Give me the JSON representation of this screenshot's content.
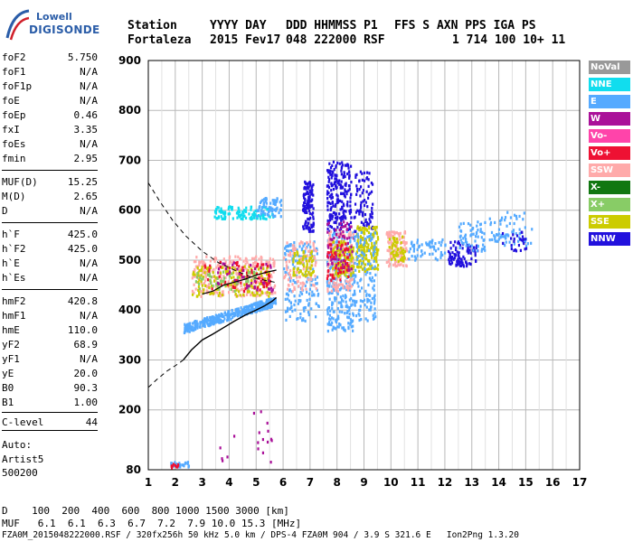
{
  "header": {
    "row1": [
      "Station",
      "YYYY DAY",
      "DDD HHMMSS P1",
      "FFS S AXN PPS IGA PS"
    ],
    "row2": [
      "Fortaleza",
      "2015 Fev17",
      "048 222000 RSF",
      "1 714 100 10+ 11"
    ]
  },
  "logo": {
    "line1": "Lowell",
    "line2": "DIGISONDE"
  },
  "params": [
    {
      "name": "foF2",
      "value": "5.750"
    },
    {
      "name": "foF1",
      "value": "N/A"
    },
    {
      "name": "foF1p",
      "value": "N/A"
    },
    {
      "name": "foE",
      "value": "N/A"
    },
    {
      "name": "foEp",
      "value": "0.46"
    },
    {
      "name": "fxI",
      "value": "3.35"
    },
    {
      "name": "foEs",
      "value": "N/A"
    },
    {
      "name": "fmin",
      "value": "2.95"
    },
    {
      "name": "MUF(D)",
      "value": "15.25"
    },
    {
      "name": "M(D)",
      "value": "2.65"
    },
    {
      "name": "D",
      "value": "N/A"
    },
    {
      "name": "h`F",
      "value": "425.0"
    },
    {
      "name": "h`F2",
      "value": "425.0"
    },
    {
      "name": "h`E",
      "value": "N/A"
    },
    {
      "name": "h`Es",
      "value": "N/A"
    },
    {
      "name": "hmF2",
      "value": "420.8"
    },
    {
      "name": "hmF1",
      "value": "N/A"
    },
    {
      "name": "hmE",
      "value": "110.0"
    },
    {
      "name": "yF2",
      "value": "68.9"
    },
    {
      "name": "yF1",
      "value": "N/A"
    },
    {
      "name": "yE",
      "value": "20.0"
    },
    {
      "name": "B0",
      "value": "90.3"
    },
    {
      "name": "B1",
      "value": "1.00"
    },
    {
      "name": "C-level",
      "value": "44"
    }
  ],
  "auto": {
    "line1": "Auto:",
    "line2": "Artist5",
    "line3": "500200"
  },
  "legend": [
    {
      "label": "NoVal",
      "color": "#999999",
      "text_color": "#ffffff"
    },
    {
      "label": "NNE",
      "color": "#11ddee",
      "text_color": "#ffffff"
    },
    {
      "label": "E",
      "color": "#55aaff",
      "text_color": "#ffffff"
    },
    {
      "label": "W",
      "color": "#aa1199",
      "text_color": "#ffffff"
    },
    {
      "label": "Vo-",
      "color": "#ff44aa",
      "text_color": "#ffffff"
    },
    {
      "label": "Vo+",
      "color": "#ee1133",
      "text_color": "#ffffff"
    },
    {
      "label": "SSW",
      "color": "#ffaaaa",
      "text_color": "#ffffff"
    },
    {
      "label": "X-",
      "color": "#117711",
      "text_color": "#ffffff"
    },
    {
      "label": "X+",
      "color": "#88cc66",
      "text_color": "#ffffff"
    },
    {
      "label": "SSE",
      "color": "#cccc00",
      "text_color": "#ffffff"
    },
    {
      "label": "NNW",
      "color": "#2211dd",
      "text_color": "#ffffff"
    }
  ],
  "footer": {
    "line1": "D    100  200  400  600  800 1000 1500 3000 [km]",
    "line2": "MUF   6.1  6.1  6.3  6.7  7.2  7.9 10.0 15.3 [MHz]",
    "line3": "FZA0M_2015048222000.RSF / 320fx256h 50 kHz 5.0 km / DPS-4 FZA0M 904 / 3.9 S 321.6 E   Ion2Png 1.3.20"
  },
  "chart_data": {
    "type": "scatter",
    "x_ticks": [
      1,
      2,
      3,
      4,
      5,
      6,
      7,
      8,
      9,
      10,
      11,
      12,
      13,
      14,
      15,
      16,
      17
    ],
    "y_ticks": [
      80,
      200,
      300,
      400,
      500,
      600,
      700,
      800,
      900
    ],
    "xlim": [
      1,
      17
    ],
    "ylim": [
      80,
      900
    ],
    "grid": true,
    "legend_position": "right",
    "profile_curve": {
      "x": [
        2.3,
        2.6,
        3.0,
        3.4,
        3.8,
        4.2,
        4.6,
        5.0,
        5.3,
        5.6,
        5.75
      ],
      "y": [
        300,
        320,
        340,
        352,
        365,
        378,
        390,
        400,
        408,
        418,
        425
      ]
    },
    "profile_dashed_upper": {
      "x": [
        1.0,
        1.4,
        1.9,
        2.4,
        3.0,
        3.6,
        4.2,
        4.8,
        5.3,
        5.75
      ],
      "y": [
        655,
        620,
        580,
        548,
        518,
        495,
        480,
        466,
        460,
        455
      ]
    },
    "profile_dashed_lower": {
      "x": [
        1.0,
        1.3,
        1.7,
        2.1,
        2.3
      ],
      "y": [
        245,
        260,
        278,
        292,
        300
      ]
    },
    "trace_curve": {
      "x": [
        3.0,
        3.4,
        3.8,
        4.2,
        4.6,
        5.0,
        5.4,
        5.75
      ],
      "y": [
        432,
        438,
        450,
        456,
        462,
        470,
        476,
        480
      ]
    },
    "clusters": [
      {
        "color": "#55aaff",
        "x": [
          2.3,
          5.7
        ],
        "y": [
          365,
          430
        ],
        "n": 380
      },
      {
        "color": "#11ddee",
        "x": [
          3.4,
          5.6
        ],
        "y": [
          585,
          610
        ],
        "n": 120
      },
      {
        "color": "#55aaff",
        "x": [
          5.0,
          5.9
        ],
        "y": [
          590,
          630
        ],
        "n": 70
      },
      {
        "color": "#ffaaaa",
        "x": [
          2.6,
          5.7
        ],
        "y": [
          430,
          510
        ],
        "n": 300
      },
      {
        "color": "#cccc00",
        "x": [
          2.6,
          5.5
        ],
        "y": [
          430,
          490
        ],
        "n": 140
      },
      {
        "color": "#ee1133",
        "x": [
          3.0,
          5.5
        ],
        "y": [
          440,
          500
        ],
        "n": 70
      },
      {
        "color": "#88cc66",
        "x": [
          2.7,
          5.0
        ],
        "y": [
          440,
          480
        ],
        "n": 50
      },
      {
        "color": "#aa1199",
        "x": [
          3.5,
          5.6
        ],
        "y": [
          440,
          500
        ],
        "n": 40
      },
      {
        "color": "#2211dd",
        "x": [
          6.7,
          7.1
        ],
        "y": [
          560,
          660
        ],
        "n": 120
      },
      {
        "color": "#55aaff",
        "x": [
          6.0,
          7.3
        ],
        "y": [
          380,
          540
        ],
        "n": 160
      },
      {
        "color": "#ffaaaa",
        "x": [
          6.0,
          7.2
        ],
        "y": [
          440,
          540
        ],
        "n": 100
      },
      {
        "color": "#cccc00",
        "x": [
          6.3,
          7.1
        ],
        "y": [
          470,
          520
        ],
        "n": 60
      },
      {
        "color": "#2211dd",
        "x": [
          7.6,
          8.5
        ],
        "y": [
          560,
          700
        ],
        "n": 220
      },
      {
        "color": "#55aaff",
        "x": [
          7.6,
          8.6
        ],
        "y": [
          360,
          560
        ],
        "n": 260
      },
      {
        "color": "#ffaaaa",
        "x": [
          7.6,
          8.6
        ],
        "y": [
          440,
          560
        ],
        "n": 160
      },
      {
        "color": "#cccc00",
        "x": [
          7.8,
          8.6
        ],
        "y": [
          470,
          540
        ],
        "n": 100
      },
      {
        "color": "#aa1199",
        "x": [
          7.6,
          8.6
        ],
        "y": [
          480,
          580
        ],
        "n": 70
      },
      {
        "color": "#ee1133",
        "x": [
          7.6,
          8.4
        ],
        "y": [
          460,
          540
        ],
        "n": 50
      },
      {
        "color": "#2211dd",
        "x": [
          8.6,
          9.3
        ],
        "y": [
          560,
          680
        ],
        "n": 80
      },
      {
        "color": "#cccc00",
        "x": [
          8.7,
          9.5
        ],
        "y": [
          480,
          570
        ],
        "n": 160
      },
      {
        "color": "#55aaff",
        "x": [
          8.6,
          9.4
        ],
        "y": [
          380,
          560
        ],
        "n": 120
      },
      {
        "color": "#ffaaaa",
        "x": [
          9.8,
          10.6
        ],
        "y": [
          490,
          560
        ],
        "n": 110
      },
      {
        "color": "#cccc00",
        "x": [
          9.9,
          10.5
        ],
        "y": [
          500,
          550
        ],
        "n": 50
      },
      {
        "color": "#55aaff",
        "x": [
          10.6,
          12.0
        ],
        "y": [
          500,
          545
        ],
        "n": 60
      },
      {
        "color": "#2211dd",
        "x": [
          12.1,
          13.2
        ],
        "y": [
          490,
          540
        ],
        "n": 90
      },
      {
        "color": "#55aaff",
        "x": [
          12.5,
          13.5
        ],
        "y": [
          520,
          580
        ],
        "n": 60
      },
      {
        "color": "#55aaff",
        "x": [
          13.6,
          15.2
        ],
        "y": [
          530,
          600
        ],
        "n": 70
      },
      {
        "color": "#2211dd",
        "x": [
          14.0,
          15.0
        ],
        "y": [
          520,
          560
        ],
        "n": 25
      },
      {
        "color": "#55aaff",
        "x": [
          1.8,
          2.5
        ],
        "y": [
          88,
          98
        ],
        "n": 30
      },
      {
        "color": "#ee1133",
        "x": [
          1.8,
          2.1
        ],
        "y": [
          86,
          94
        ],
        "n": 12
      },
      {
        "color": "#aa1199",
        "x": [
          3.0,
          5.6
        ],
        "y": [
          95,
          200
        ],
        "n": 18
      }
    ]
  }
}
